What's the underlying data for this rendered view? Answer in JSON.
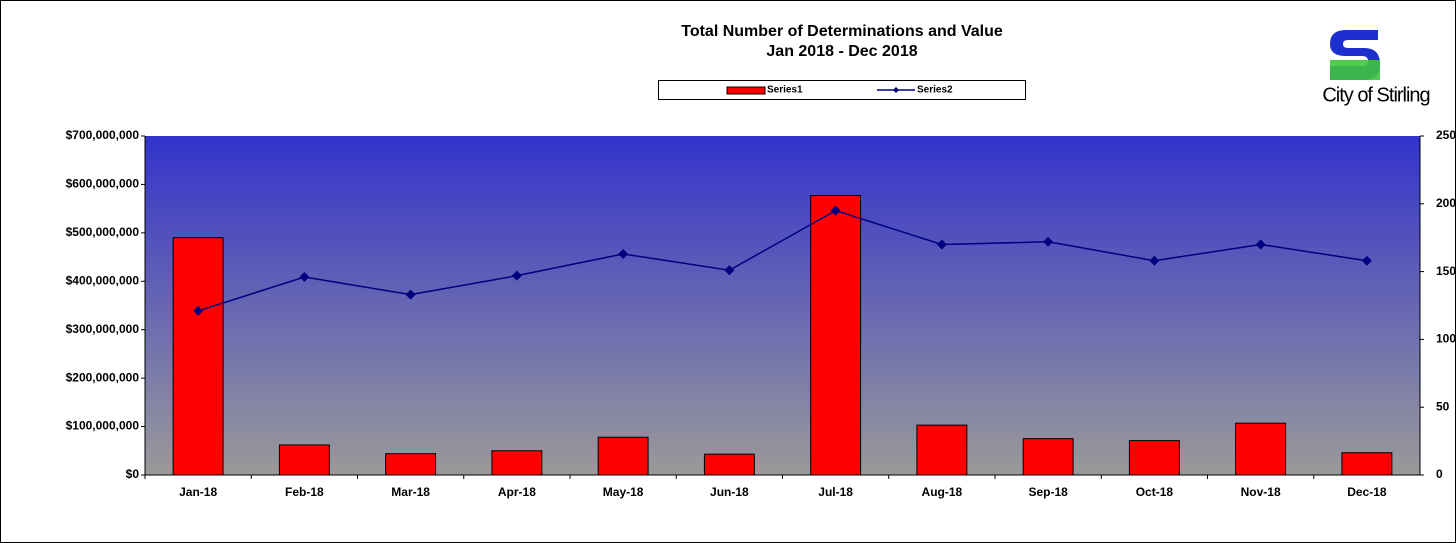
{
  "chart_data": {
    "type": "bar",
    "title": "Total Number of Determinations and Value",
    "subtitle": "Jan  2018 - Dec 2018",
    "logo_text": "City of Stirling",
    "categories": [
      "Jan-18",
      "Feb-18",
      "Mar-18",
      "Apr-18",
      "May-18",
      "Jun-18",
      "Jul-18",
      "Aug-18",
      "Sep-18",
      "Oct-18",
      "Nov-18",
      "Dec-18"
    ],
    "series": [
      {
        "name": "Series1",
        "type": "bar",
        "color": "#ff0000",
        "values": [
          490000000,
          62000000,
          44000000,
          50000000,
          78000000,
          43000000,
          577000000,
          103000000,
          75000000,
          71000000,
          107000000,
          46000000
        ]
      },
      {
        "name": "Series2",
        "type": "line",
        "axis": "y2",
        "color": "#000080",
        "values": [
          121,
          146,
          133,
          147,
          163,
          151,
          195,
          170,
          172,
          158,
          170,
          158
        ]
      }
    ],
    "ylim": [
      0,
      700000000
    ],
    "yticks": [
      {
        "value": 0,
        "label": "$0"
      },
      {
        "value": 100000000,
        "label": "$100,000,000"
      },
      {
        "value": 200000000,
        "label": "$200,000,000"
      },
      {
        "value": 300000000,
        "label": "$300,000,000"
      },
      {
        "value": 400000000,
        "label": "$400,000,000"
      },
      {
        "value": 500000000,
        "label": "$500,000,000"
      },
      {
        "value": 600000000,
        "label": "$600,000,000"
      },
      {
        "value": 700000000,
        "label": "$700,000,000"
      }
    ],
    "y2lim": [
      0,
      250
    ],
    "y2ticks": [
      0,
      50,
      100,
      150,
      200,
      250
    ],
    "legend": "top"
  }
}
